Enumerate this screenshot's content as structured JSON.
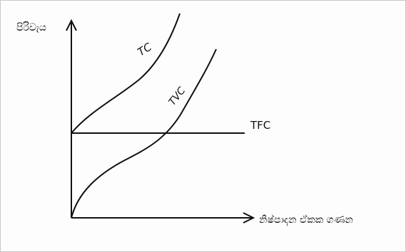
{
  "axes": {
    "y_label": "පිරිවැය",
    "x_label": "නිෂ්පාදන ඒකක ගණන"
  },
  "curves": {
    "tc": "TC",
    "tvc": "TVC",
    "tfc": "TFC"
  },
  "colors": {
    "ink": "#111111",
    "background": "#fdfdfd",
    "border": "#c8c8c8"
  }
}
